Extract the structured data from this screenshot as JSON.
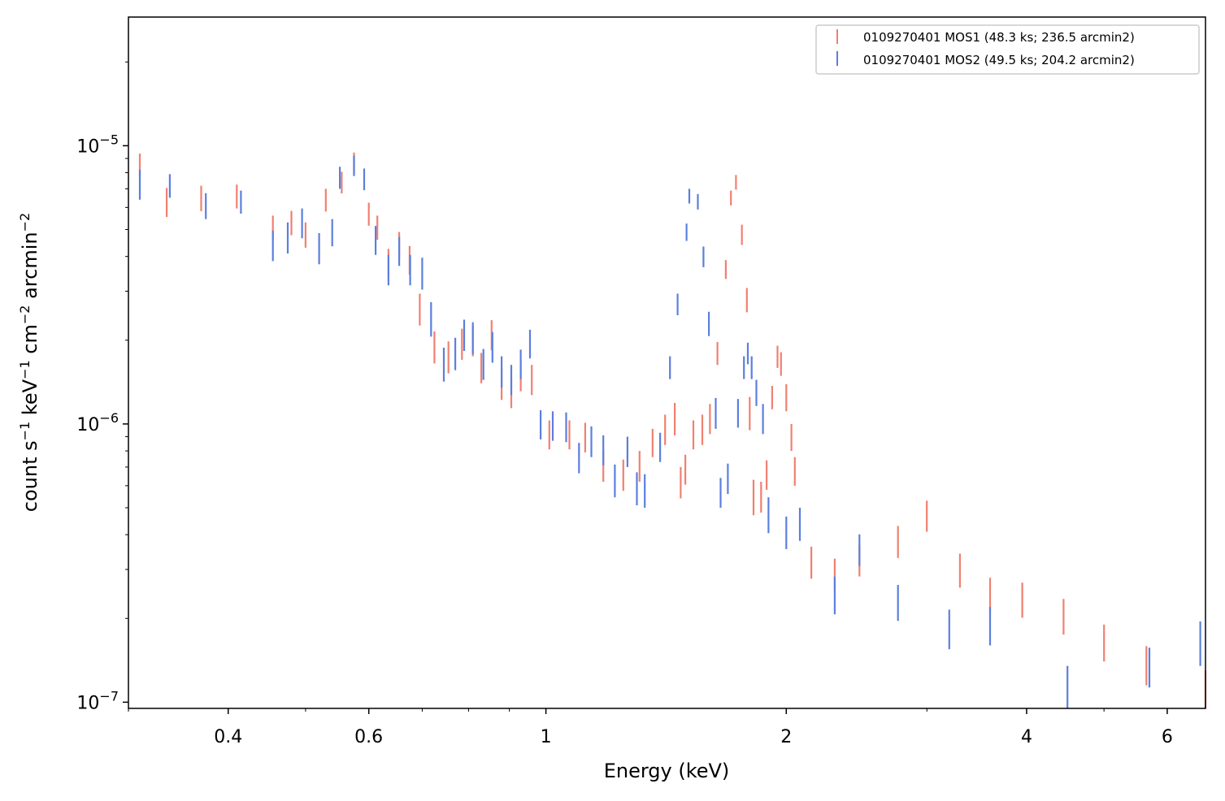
{
  "chart_data": {
    "type": "scatter",
    "xlabel": "Energy (keV)",
    "ylabel_parts": [
      "count s",
      "−1",
      " keV",
      "−1",
      " cm",
      "−2",
      " arcmin",
      "−2"
    ],
    "xscale": "log",
    "yscale": "log",
    "xlim": [
      0.3,
      6.7
    ],
    "ylim": [
      9.5e-08,
      2.9e-05
    ],
    "x_ticks": [
      {
        "value": 0.4,
        "label": "0.4"
      },
      {
        "value": 0.6,
        "label": "0.6"
      },
      {
        "value": 1,
        "label": "1"
      },
      {
        "value": 2,
        "label": "2"
      },
      {
        "value": 4,
        "label": "4"
      },
      {
        "value": 6,
        "label": "6"
      }
    ],
    "y_ticks": [
      {
        "value": 1e-05,
        "base": "10",
        "exp": "−5"
      },
      {
        "value": 1e-06,
        "base": "10",
        "exp": "−6"
      },
      {
        "value": 1e-07,
        "base": "10",
        "exp": "−7"
      }
    ],
    "legend_position": "top-right",
    "series": [
      {
        "name": "0109270401 MOS1 (48.3 ks; 236.5 arcmin2)",
        "color": "#f08070",
        "points": [
          [
            0.31,
            8.6e-06,
            7.7e-07
          ],
          [
            0.335,
            6.3e-06,
            7.5e-07
          ],
          [
            0.37,
            6.5e-06,
            6.8e-07
          ],
          [
            0.41,
            6.6e-06,
            6.5e-07
          ],
          [
            0.455,
            5.1e-06,
            5.1e-07
          ],
          [
            0.48,
            5.3e-06,
            5.3e-07
          ],
          [
            0.5,
            4.8e-06,
            5e-07
          ],
          [
            0.53,
            6.4e-06,
            6e-07
          ],
          [
            0.555,
            7.4e-06,
            6.6e-07
          ],
          [
            0.575,
            8.7e-06,
            7.5e-07
          ],
          [
            0.6,
            5.7e-06,
            5.4e-07
          ],
          [
            0.615,
            5.1e-06,
            5.1e-07
          ],
          [
            0.635,
            3.8e-06,
            4.6e-07
          ],
          [
            0.655,
            4.4e-06,
            5e-07
          ],
          [
            0.675,
            3.9e-06,
            4.6e-07
          ],
          [
            0.695,
            2.6e-06,
            3.4e-07
          ],
          [
            0.725,
            1.9e-06,
            2.5e-07
          ],
          [
            0.755,
            1.75e-06,
            2.3e-07
          ],
          [
            0.785,
            1.95e-06,
            2.5e-07
          ],
          [
            0.81,
            2e-06,
            2.5e-07
          ],
          [
            0.83,
            1.6e-06,
            2e-07
          ],
          [
            0.855,
            2.1e-06,
            2.6e-07
          ],
          [
            0.88,
            1.4e-06,
            1.8e-07
          ],
          [
            0.905,
            1.3e-06,
            1.6e-07
          ],
          [
            0.93,
            1.5e-06,
            1.9e-07
          ],
          [
            0.96,
            1.45e-06,
            1.8e-07
          ],
          [
            1.01,
            9.2e-07,
            1.1e-07
          ],
          [
            1.07,
            9.2e-07,
            1.1e-07
          ],
          [
            1.12,
            9e-07,
            1.1e-07
          ],
          [
            1.18,
            7.1e-07,
            9e-08
          ],
          [
            1.25,
            6.6e-07,
            8.5e-08
          ],
          [
            1.31,
            7.1e-07,
            9e-08
          ],
          [
            1.36,
            8.6e-07,
            1e-07
          ],
          [
            1.41,
            9.6e-07,
            1.2e-07
          ],
          [
            1.45,
            1.05e-06,
            1.4e-07
          ],
          [
            1.475,
            6.2e-07,
            8e-08
          ],
          [
            1.495,
            6.9e-07,
            8.5e-08
          ],
          [
            1.53,
            9.2e-07,
            1.1e-07
          ],
          [
            1.57,
            9.6e-07,
            1.2e-07
          ],
          [
            1.605,
            1.05e-06,
            1.3e-07
          ],
          [
            1.64,
            1.8e-06,
            1.7e-07
          ],
          [
            1.68,
            3.6e-06,
            2.8e-07
          ],
          [
            1.705,
            6.5e-06,
            4e-07
          ],
          [
            1.73,
            7.4e-06,
            4.5e-07
          ],
          [
            1.76,
            4.8e-06,
            4e-07
          ],
          [
            1.785,
            2.8e-06,
            2.8e-07
          ],
          [
            1.8,
            1.1e-06,
            1.5e-07
          ],
          [
            1.82,
            5.5e-07,
            8e-08
          ],
          [
            1.86,
            5.5e-07,
            7e-08
          ],
          [
            1.89,
            6.6e-07,
            8e-08
          ],
          [
            1.92,
            1.25e-06,
            1.2e-07
          ],
          [
            1.95,
            1.75e-06,
            1.6e-07
          ],
          [
            1.97,
            1.65e-06,
            1.6e-07
          ],
          [
            2.0,
            1.25e-06,
            1.4e-07
          ],
          [
            2.03,
            9e-07,
            1e-07
          ],
          [
            2.05,
            6.8e-07,
            8e-08
          ],
          [
            2.15,
            3.2e-07,
            4.2e-08
          ],
          [
            2.3,
            2.9e-07,
            3.8e-08
          ],
          [
            2.47,
            3.25e-07,
            4.2e-08
          ],
          [
            2.76,
            3.8e-07,
            5e-08
          ],
          [
            3.0,
            4.7e-07,
            6e-08
          ],
          [
            3.3,
            3e-07,
            4.2e-08
          ],
          [
            3.6,
            2.45e-07,
            3.5e-08
          ],
          [
            3.95,
            2.35e-07,
            3.4e-08
          ],
          [
            4.45,
            2.05e-07,
            3e-08
          ],
          [
            5.0,
            1.65e-07,
            2.5e-08
          ],
          [
            5.65,
            1.37e-07,
            2.2e-08
          ],
          [
            6.7,
            1.1e-07,
            2e-08
          ]
        ]
      },
      {
        "name": "0109270401 MOS2 (49.5 ks; 204.2 arcmin2)",
        "color": "#5b7fdd",
        "points": [
          [
            0.31,
            7.3e-06,
            9e-07
          ],
          [
            0.338,
            7.2e-06,
            7e-07
          ],
          [
            0.375,
            6.1e-06,
            6.5e-07
          ],
          [
            0.415,
            6.3e-06,
            6e-07
          ],
          [
            0.455,
            4.4e-06,
            5.5e-07
          ],
          [
            0.475,
            4.7e-06,
            6e-07
          ],
          [
            0.495,
            5.3e-06,
            6.5e-07
          ],
          [
            0.52,
            4.3e-06,
            5.5e-07
          ],
          [
            0.54,
            4.9e-06,
            5.5e-07
          ],
          [
            0.552,
            7.7e-06,
            7e-07
          ],
          [
            0.575,
            8.5e-06,
            7.2e-07
          ],
          [
            0.592,
            7.6e-06,
            6.8e-07
          ],
          [
            0.612,
            4.6e-06,
            5.5e-07
          ],
          [
            0.635,
            3.6e-06,
            4.5e-07
          ],
          [
            0.655,
            4.2e-06,
            5e-07
          ],
          [
            0.676,
            3.6e-06,
            4.5e-07
          ],
          [
            0.7,
            3.5e-06,
            4.6e-07
          ],
          [
            0.718,
            2.4e-06,
            3.4e-07
          ],
          [
            0.745,
            1.65e-06,
            2.3e-07
          ],
          [
            0.77,
            1.8e-06,
            2.4e-07
          ],
          [
            0.79,
            2.1e-06,
            2.7e-07
          ],
          [
            0.81,
            2.05e-06,
            2.7e-07
          ],
          [
            0.835,
            1.65e-06,
            2.1e-07
          ],
          [
            0.857,
            1.9e-06,
            2.4e-07
          ],
          [
            0.88,
            1.55e-06,
            2e-07
          ],
          [
            0.905,
            1.45e-06,
            1.8e-07
          ],
          [
            0.93,
            1.65e-06,
            2e-07
          ],
          [
            0.955,
            1.95e-06,
            2.3e-07
          ],
          [
            0.985,
            1e-06,
            1.2e-07
          ],
          [
            1.02,
            9.9e-07,
            1.2e-07
          ],
          [
            1.06,
            9.8e-07,
            1.2e-07
          ],
          [
            1.1,
            7.6e-07,
            9.5e-08
          ],
          [
            1.14,
            8.7e-07,
            1.1e-07
          ],
          [
            1.18,
            8.1e-07,
            1e-07
          ],
          [
            1.22,
            6.3e-07,
            8.5e-08
          ],
          [
            1.265,
            8e-07,
            1e-07
          ],
          [
            1.3,
            5.9e-07,
            8e-08
          ],
          [
            1.33,
            5.8e-07,
            8e-08
          ],
          [
            1.39,
            8.3e-07,
            1e-07
          ],
          [
            1.43,
            1.6e-06,
            1.5e-07
          ],
          [
            1.462,
            2.7e-06,
            2.4e-07
          ],
          [
            1.5,
            4.9e-06,
            3.5e-07
          ],
          [
            1.512,
            6.6e-06,
            4e-07
          ],
          [
            1.55,
            6.3e-06,
            4e-07
          ],
          [
            1.575,
            4e-06,
            3.4e-07
          ],
          [
            1.6,
            2.3e-06,
            2.3e-07
          ],
          [
            1.632,
            1.1e-06,
            1.4e-07
          ],
          [
            1.655,
            5.7e-07,
            7e-08
          ],
          [
            1.69,
            6.4e-07,
            8e-08
          ],
          [
            1.74,
            1.1e-06,
            1.3e-07
          ],
          [
            1.77,
            1.6e-06,
            1.5e-07
          ],
          [
            1.79,
            1.8e-06,
            1.6e-07
          ],
          [
            1.81,
            1.6e-06,
            1.5e-07
          ],
          [
            1.835,
            1.3e-06,
            1.4e-07
          ],
          [
            1.87,
            1.05e-06,
            1.3e-07
          ],
          [
            1.9,
            4.75e-07,
            7e-08
          ],
          [
            2.0,
            4.1e-07,
            5.5e-08
          ],
          [
            2.08,
            4.4e-07,
            6e-08
          ],
          [
            2.3,
            2.45e-07,
            3.8e-08
          ],
          [
            2.47,
            3.55e-07,
            4.6e-08
          ],
          [
            2.76,
            2.3e-07,
            3.4e-08
          ],
          [
            3.2,
            1.85e-07,
            3e-08
          ],
          [
            3.6,
            1.9e-07,
            3e-08
          ],
          [
            4.5,
            1.15e-07,
            2e-08
          ],
          [
            5.7,
            1.35e-07,
            2.2e-08
          ],
          [
            6.6,
            1.65e-07,
            3e-08
          ]
        ]
      }
    ]
  }
}
